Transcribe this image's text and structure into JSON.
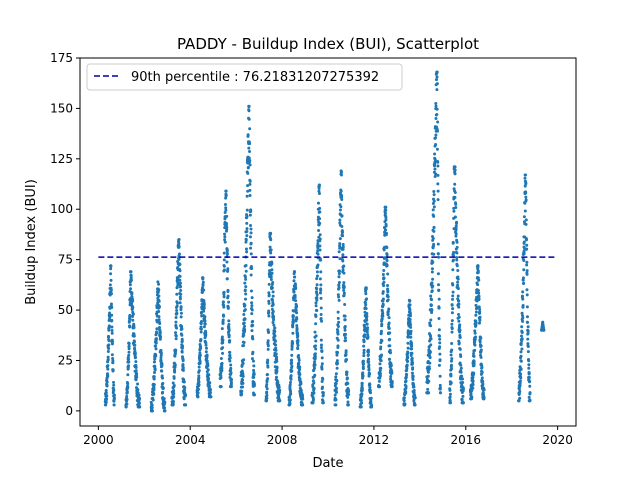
{
  "chart_data": {
    "type": "scatter",
    "title": "PADDY - Buildup Index (BUI), Scatterplot",
    "xlabel": "Date",
    "ylabel": "Buildup Index (BUI)",
    "xlim": [
      1999.2,
      2020.8
    ],
    "ylim": [
      -7.5,
      175
    ],
    "x_ticks": [
      2000,
      2004,
      2008,
      2012,
      2016,
      2020
    ],
    "y_ticks": [
      0,
      25,
      50,
      75,
      100,
      125,
      150,
      175
    ],
    "legend_position": "upper-left",
    "point_color": "#1f77b4",
    "reference_line": {
      "label": "90th percentile : 76.21831207275392",
      "value": 76.21831207275392,
      "x_start": 2000.0,
      "x_end": 2019.9,
      "color": "#0000aa",
      "style": "dashed"
    },
    "seasons": [
      {
        "start": 2000.3,
        "end": 2000.7,
        "min": 3,
        "max": 72,
        "peak_frac": 0.6
      },
      {
        "start": 2001.2,
        "end": 2001.8,
        "min": 2,
        "max": 69,
        "peak_frac": 0.35
      },
      {
        "start": 2002.3,
        "end": 2002.9,
        "min": 0,
        "max": 64,
        "peak_frac": 0.5
      },
      {
        "start": 2003.2,
        "end": 2003.8,
        "min": 3,
        "max": 85,
        "peak_frac": 0.5
      },
      {
        "start": 2004.3,
        "end": 2004.9,
        "min": 7,
        "max": 66,
        "peak_frac": 0.4
      },
      {
        "start": 2005.3,
        "end": 2005.8,
        "min": 12,
        "max": 109,
        "peak_frac": 0.5
      },
      {
        "start": 2006.2,
        "end": 2006.8,
        "min": 8,
        "max": 151,
        "peak_frac": 0.6
      },
      {
        "start": 2007.3,
        "end": 2007.9,
        "min": 5,
        "max": 88,
        "peak_frac": 0.3
      },
      {
        "start": 2008.3,
        "end": 2008.9,
        "min": 3,
        "max": 69,
        "peak_frac": 0.4
      },
      {
        "start": 2009.3,
        "end": 2009.8,
        "min": 4,
        "max": 112,
        "peak_frac": 0.65
      },
      {
        "start": 2010.3,
        "end": 2010.9,
        "min": 3,
        "max": 119,
        "peak_frac": 0.45
      },
      {
        "start": 2011.4,
        "end": 2011.9,
        "min": 2,
        "max": 61,
        "peak_frac": 0.5
      },
      {
        "start": 2012.2,
        "end": 2012.8,
        "min": 12,
        "max": 101,
        "peak_frac": 0.5
      },
      {
        "start": 2013.3,
        "end": 2013.8,
        "min": 3,
        "max": 55,
        "peak_frac": 0.5
      },
      {
        "start": 2014.3,
        "end": 2014.9,
        "min": 9,
        "max": 168,
        "peak_frac": 0.75
      },
      {
        "start": 2015.3,
        "end": 2015.9,
        "min": 4,
        "max": 121,
        "peak_frac": 0.35
      },
      {
        "start": 2016.2,
        "end": 2016.8,
        "min": 6,
        "max": 72,
        "peak_frac": 0.55
      },
      {
        "start": 2018.3,
        "end": 2018.8,
        "min": 5,
        "max": 117,
        "peak_frac": 0.6
      },
      {
        "start": 2019.3,
        "end": 2019.4,
        "min": 40,
        "max": 44,
        "peak_frac": 0.5
      }
    ]
  }
}
